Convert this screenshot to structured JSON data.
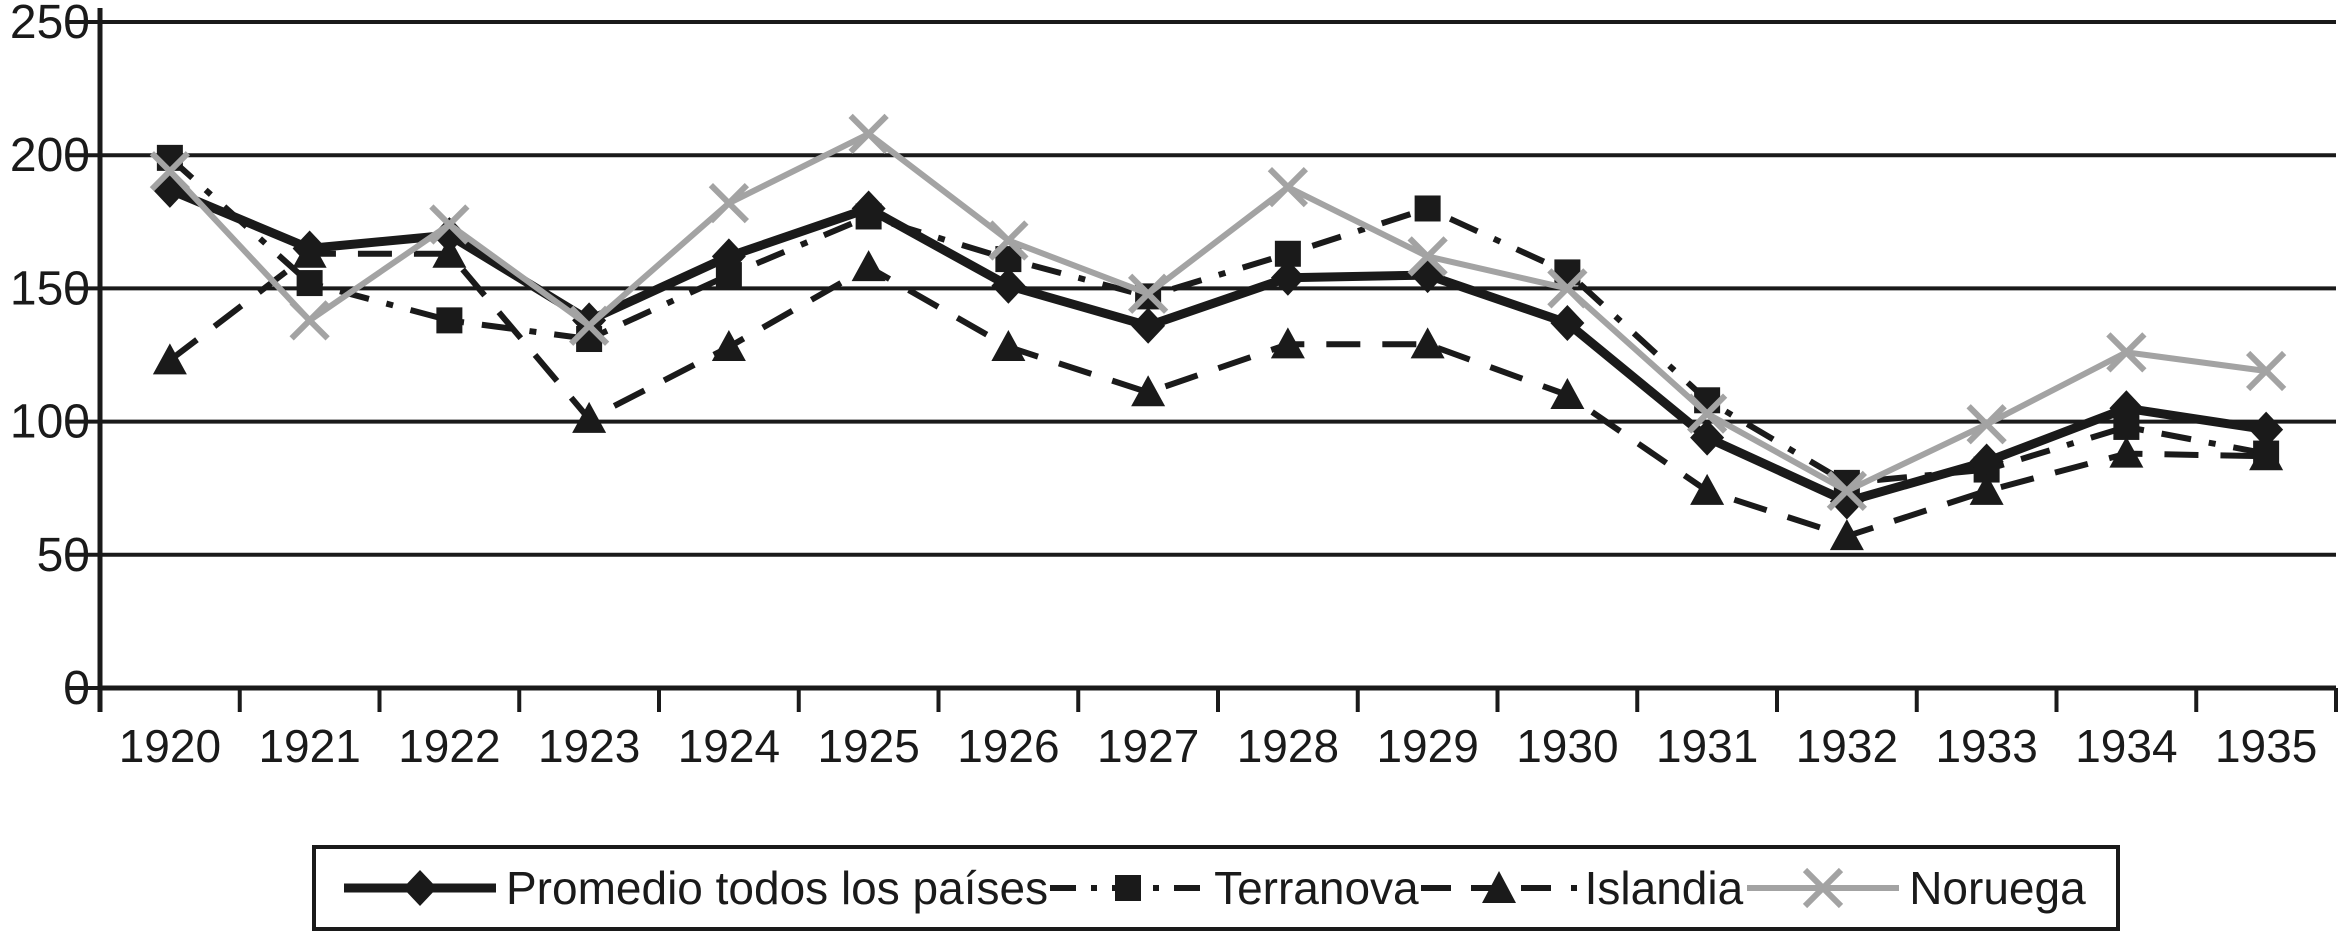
{
  "chart_data": {
    "type": "line",
    "title": "",
    "xlabel": "",
    "ylabel": "",
    "categories": [
      "1920",
      "1921",
      "1922",
      "1923",
      "1924",
      "1925",
      "1926",
      "1927",
      "1928",
      "1929",
      "1930",
      "1931",
      "1932",
      "1933",
      "1934",
      "1935"
    ],
    "y_ticks": [
      0,
      50,
      100,
      150,
      200,
      250
    ],
    "ylim": [
      0,
      250
    ],
    "grid": true,
    "legend_position": "bottom",
    "axis_color": "#1a1a1a",
    "series": [
      {
        "name": "Promedio todos los países",
        "marker": "diamond",
        "line_style": "solid_thick",
        "color": "#1a1a1a",
        "values": [
          187,
          165,
          170,
          138,
          162,
          180,
          151,
          136,
          154,
          155,
          137,
          94,
          70,
          85,
          105,
          97
        ]
      },
      {
        "name": "Terranova",
        "marker": "square",
        "line_style": "dash_dot",
        "color": "#1a1a1a",
        "values": [
          199,
          152,
          138,
          131,
          155,
          177,
          161,
          147,
          163,
          180,
          156,
          108,
          77,
          82,
          98,
          88
        ]
      },
      {
        "name": "Islandia",
        "marker": "triangle",
        "line_style": "dashed",
        "color": "#1a1a1a",
        "values": [
          123,
          163,
          163,
          101,
          128,
          158,
          128,
          111,
          129,
          129,
          110,
          74,
          57,
          74,
          88,
          87
        ]
      },
      {
        "name": "Noruega",
        "marker": "x",
        "line_style": "solid",
        "color": "#a3a3a3",
        "values": [
          194,
          138,
          174,
          136,
          182,
          208,
          168,
          148,
          188,
          162,
          150,
          103,
          74,
          99,
          126,
          119
        ]
      }
    ]
  }
}
